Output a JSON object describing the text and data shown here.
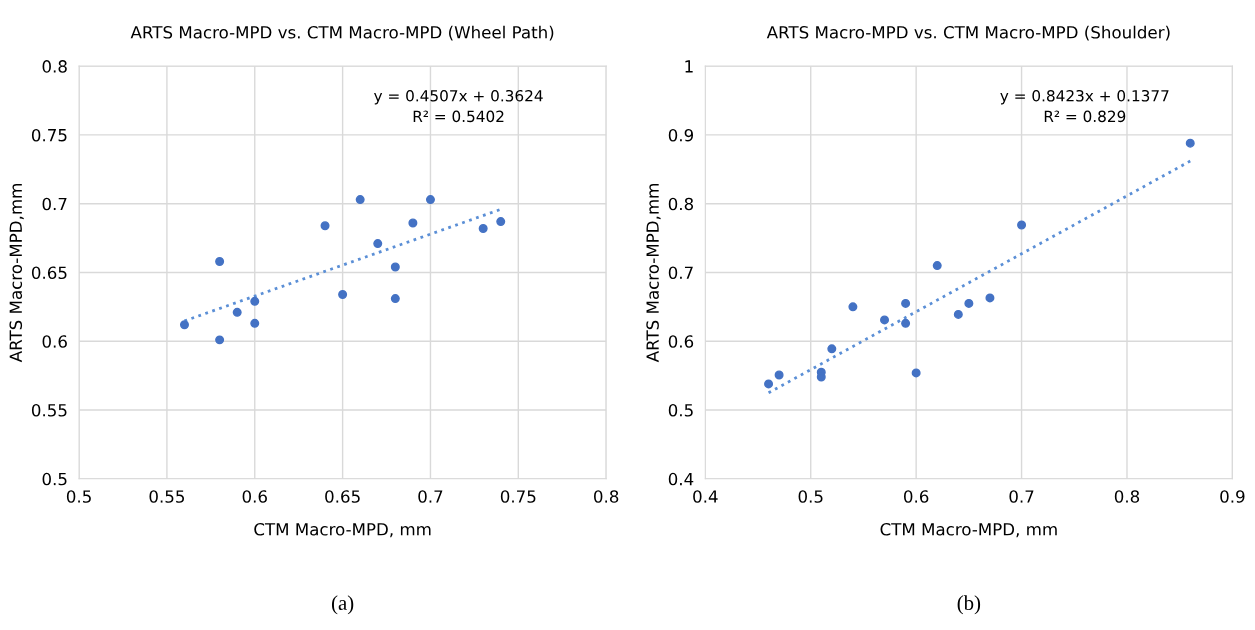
{
  "chart_data": [
    {
      "type": "scatter",
      "title": "ARTS Macro-MPD vs. CTM Macro-MPD (Wheel Path)",
      "xlabel": "CTM Macro-MPD, mm",
      "ylabel": "ARTS Macro-MPD,mm",
      "xlim": [
        0.5,
        0.8
      ],
      "xticks": [
        0.5,
        0.55,
        0.6,
        0.65,
        0.7,
        0.75,
        0.8
      ],
      "ylim": [
        0.5,
        0.8
      ],
      "yticks": [
        0.5,
        0.55,
        0.6,
        0.65,
        0.7,
        0.75,
        0.8
      ],
      "grid": true,
      "legend": false,
      "series": [
        {
          "marker": "circle",
          "color": "#4472c4",
          "x": [
            0.56,
            0.58,
            0.58,
            0.59,
            0.6,
            0.6,
            0.64,
            0.65,
            0.66,
            0.67,
            0.68,
            0.68,
            0.69,
            0.7,
            0.73,
            0.74
          ],
          "values": [
            0.612,
            0.658,
            0.601,
            0.621,
            0.629,
            0.613,
            0.684,
            0.634,
            0.703,
            0.671,
            0.654,
            0.631,
            0.686,
            0.703,
            0.682,
            0.687
          ]
        },
        {
          "type": "line",
          "marker": "none",
          "line_style": "dotted",
          "color": "#5b8fd6",
          "x": [
            0.56,
            0.74
          ],
          "values": [
            0.6148,
            0.6959
          ]
        }
      ],
      "annotations": [
        "y = 0.4507x + 0.3624\nR² = 0.5402",
        "(a)"
      ]
    },
    {
      "type": "scatter",
      "title": "ARTS Macro-MPD vs. CTM Macro-MPD (Shoulder)",
      "xlabel": "CTM Macro-MPD, mm",
      "ylabel": "ARTS Macro-MPD,mm",
      "xlim": [
        0.4,
        0.9
      ],
      "xticks": [
        0.4,
        0.5,
        0.6,
        0.7,
        0.8,
        0.9
      ],
      "ylim": [
        0.4,
        1
      ],
      "yticks": [
        0.4,
        0.5,
        0.6,
        0.7,
        0.8,
        0.9,
        1
      ],
      "grid": true,
      "legend": false,
      "series": [
        {
          "marker": "circle",
          "color": "#4472c4",
          "x": [
            0.46,
            0.47,
            0.51,
            0.51,
            0.52,
            0.54,
            0.57,
            0.59,
            0.59,
            0.6,
            0.62,
            0.64,
            0.65,
            0.67,
            0.7,
            0.86
          ],
          "values": [
            0.538,
            0.551,
            0.555,
            0.548,
            0.589,
            0.65,
            0.631,
            0.655,
            0.626,
            0.554,
            0.71,
            0.639,
            0.655,
            0.663,
            0.769,
            0.888
          ]
        },
        {
          "type": "line",
          "marker": "none",
          "line_style": "dotted",
          "color": "#5b8fd6",
          "x": [
            0.46,
            0.86
          ],
          "values": [
            0.525,
            0.862
          ]
        }
      ],
      "annotations": [
        "y = 0.8423x + 0.1377\nR² = 0.829",
        "(b)"
      ]
    }
  ]
}
